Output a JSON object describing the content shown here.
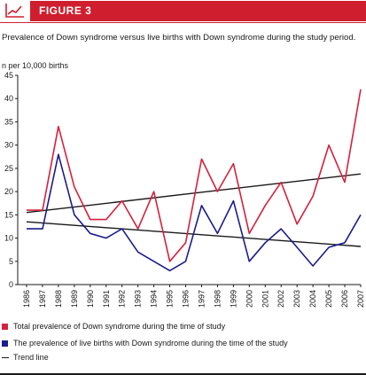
{
  "figure_label": "FIGURE 3",
  "caption": "Prevalence of Down syndrome versus live births with Down syndrome during the study period.",
  "chart_data": {
    "type": "line",
    "ylabel": "n per 10,000 births",
    "xlabel": "",
    "ylim": [
      0,
      45
    ],
    "yticks": [
      0,
      5,
      10,
      15,
      20,
      25,
      30,
      35,
      40,
      45
    ],
    "grid": false,
    "legend_position": "bottom",
    "categories": [
      "1986",
      "1987",
      "1988",
      "1989",
      "1990",
      "1991",
      "1992",
      "1993",
      "1994",
      "1995",
      "1996",
      "1997",
      "1998",
      "1999",
      "2000",
      "2001",
      "2002",
      "2003",
      "2004",
      "2005",
      "2006",
      "2007"
    ],
    "series": [
      {
        "name": "Total prevalence of Down syndrome during the time of study",
        "color": "#d4213d",
        "values": [
          16,
          16,
          34,
          21,
          14,
          14,
          18,
          12,
          20,
          5,
          9,
          27,
          20,
          26,
          11,
          17,
          22,
          13,
          19,
          30,
          22,
          42
        ]
      },
      {
        "name": "The prevalence of live births with Down syndrome during the time of the study",
        "color": "#1c1c8c",
        "values": [
          12,
          12,
          28,
          15,
          11,
          10,
          12,
          7,
          5,
          3,
          5,
          17,
          11,
          18,
          5,
          9,
          12,
          8,
          4,
          8,
          9,
          15
        ]
      }
    ],
    "trend_lines": [
      {
        "name": "Trend line",
        "color": "#1a1a1a",
        "start": 15.5,
        "end": 23.8
      },
      {
        "name": "Trend line",
        "color": "#1a1a1a",
        "start": 13.5,
        "end": 8.2
      }
    ]
  },
  "legend": {
    "item1": "Total prevalence of Down syndrome during the time of study",
    "item2": "The prevalence of live births with Down syndrome during the time of the study",
    "item3": "Trend line"
  }
}
